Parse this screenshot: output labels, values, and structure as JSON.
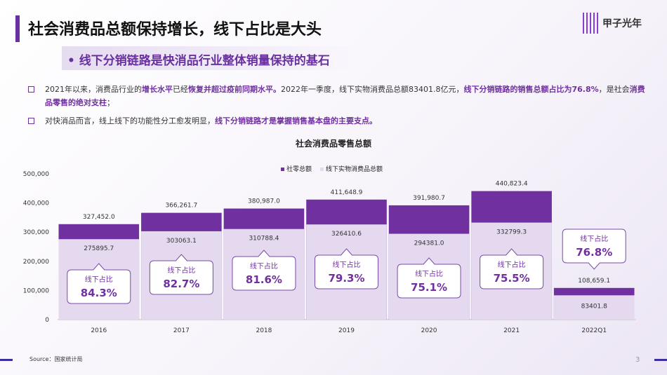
{
  "header": {
    "title": "社会消费品总额保持增长，线下占比是大头",
    "subtitle": "•  线下分销链路是快消品行业整体销量保持的基石",
    "logo_text": "甲子光年"
  },
  "bullets": [
    {
      "parts": [
        {
          "t": "2021年以来，消费品行业的",
          "h": false
        },
        {
          "t": "增长水平",
          "h": true
        },
        {
          "t": "已经",
          "h": false
        },
        {
          "t": "恢复并超过疫前同期水平。",
          "h": true
        },
        {
          "t": "2022年一季度，线下实物消费品总额83401.8亿元，",
          "h": false
        },
        {
          "t": "线下分销链路的销售总额占比为76.8%",
          "h": true
        },
        {
          "t": "，是社会",
          "h": false
        },
        {
          "t": "消费品零售的绝对支柱",
          "h": true
        },
        {
          "t": "；",
          "h": false
        }
      ]
    },
    {
      "parts": [
        {
          "t": "对快消品而言，线上线下的功能性分工愈发明显，",
          "h": false
        },
        {
          "t": "线下分销链路才是掌握销售基本盘的主要支点。",
          "h": true
        }
      ]
    }
  ],
  "chart_data": {
    "type": "bar",
    "title": "社会消费品零售总额",
    "categories": [
      "2016",
      "2017",
      "2018",
      "2019",
      "2020",
      "2021",
      "2022Q1"
    ],
    "series": [
      {
        "name": "社零总额",
        "color": "#7030a0",
        "values": [
          327452.0,
          366261.7,
          380987.0,
          411648.9,
          391980.7,
          440823.4,
          108659.1
        ],
        "labels": [
          "327,452.0",
          "366,261.7",
          "380,987.0",
          "411,648.9",
          "391,980.7",
          "440,823.4",
          "108,659.1"
        ]
      },
      {
        "name": "线下实物消费品总额",
        "color": "#e4d9ef",
        "values": [
          275895.7,
          303063.1,
          310788.4,
          326410.6,
          294381.0,
          332799.3,
          83401.8
        ],
        "labels": [
          "275895.7",
          "303063.1",
          "310788.4",
          "326410.6",
          "294381.0",
          "332799.3",
          "83401.8"
        ]
      }
    ],
    "ratio_label": "线下占比",
    "ratios": [
      "84.3%",
      "82.7%",
      "81.6%",
      "79.3%",
      "75.1%",
      "75.5%",
      "76.8%"
    ],
    "ylim": [
      0,
      500000
    ],
    "yticks": [
      "0",
      "100,000",
      "200,000",
      "300,000",
      "400,000",
      "500,000"
    ],
    "legend": "top"
  },
  "footer": {
    "source": "Source：国家统计局",
    "page": "3"
  }
}
